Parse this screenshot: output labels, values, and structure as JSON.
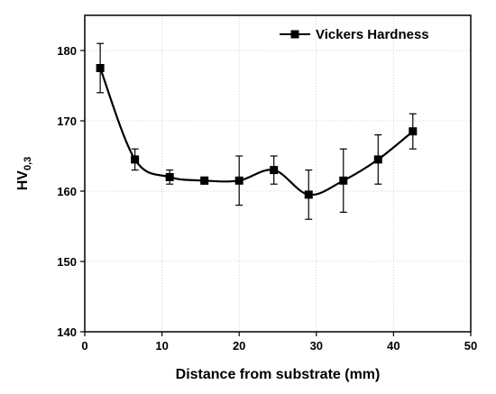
{
  "chart_data": {
    "type": "line",
    "title": "",
    "xlabel": "Distance from substrate (mm)",
    "ylabel_main": "HV",
    "ylabel_sub": "0,3",
    "xlim": [
      0,
      50
    ],
    "ylim": [
      140,
      185
    ],
    "xticks": [
      0,
      10,
      20,
      30,
      40,
      50
    ],
    "yticks": [
      140,
      150,
      160,
      170,
      180
    ],
    "grid": true,
    "legend_position": "top-right",
    "series": [
      {
        "name": "Vickers Hardness",
        "color": "#000000",
        "marker": "square",
        "smooth": true,
        "x": [
          2,
          6.5,
          11,
          15.5,
          20,
          24.5,
          29,
          33.5,
          38,
          42.5
        ],
        "y": [
          177.5,
          164.5,
          162,
          161.5,
          161.5,
          163,
          159.5,
          161.5,
          164.5,
          168.5
        ],
        "err_low": [
          174,
          163,
          161,
          161,
          158,
          161,
          156,
          157,
          161,
          166
        ],
        "err_high": [
          181,
          166,
          163,
          162,
          165,
          165,
          163,
          166,
          168,
          171
        ]
      }
    ]
  }
}
